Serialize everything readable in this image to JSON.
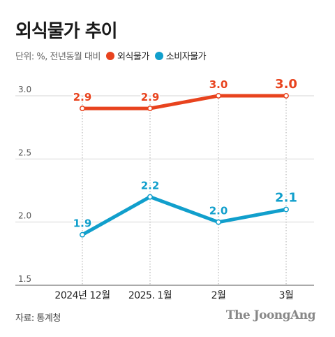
{
  "title": "외식물가 추이",
  "unit_label": "단위: %, 전년동월 대비",
  "source": "자료: 통계청",
  "brand": "The JoongAng",
  "chart_data": {
    "type": "line",
    "title": "외식물가 추이",
    "categories": [
      "2024년 12월",
      "2025. 1월",
      "2월",
      "3월"
    ],
    "series": [
      {
        "name": "외식물가",
        "color": "#e8431e",
        "values": [
          2.9,
          2.9,
          3.0,
          3.0
        ]
      },
      {
        "name": "소비자물가",
        "color": "#119fcc",
        "values": [
          1.9,
          2.2,
          2.0,
          2.1
        ]
      }
    ],
    "y_ticks": [
      "3.0",
      "2.5",
      "2.0",
      "1.5"
    ],
    "ylim": [
      1.5,
      3.0
    ],
    "grid": true,
    "legend": "top-left"
  }
}
